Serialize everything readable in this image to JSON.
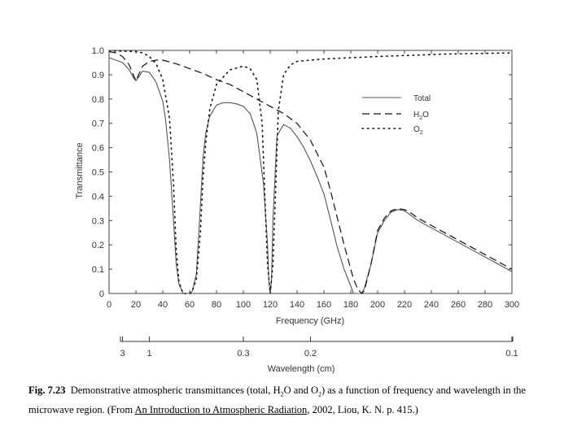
{
  "chart_data": {
    "type": "line",
    "xlabel": "Frequency (GHz)",
    "ylabel": "Transmittance",
    "xlim": [
      0,
      300
    ],
    "ylim": [
      0,
      1.0
    ],
    "x_ticks": [
      "0",
      "20",
      "40",
      "60",
      "80",
      "100",
      "120",
      "140",
      "160",
      "180",
      "200",
      "220",
      "240",
      "260",
      "280",
      "300"
    ],
    "y_ticks": [
      "0",
      "0.1",
      "0.2",
      "0.3",
      "0.4",
      "0.5",
      "0.6",
      "0.7",
      "0.8",
      "0.9",
      "1.0"
    ],
    "grid": false,
    "legend_position": "top-right",
    "legend": [
      "Total",
      "H2O",
      "O2"
    ],
    "secondary_axis": {
      "label": "Wavelength (cm)",
      "ticks": [
        {
          "label": "3",
          "frequency": 10
        },
        {
          "label": "1",
          "frequency": 30
        },
        {
          "label": "0.3",
          "frequency": 100
        },
        {
          "label": "0.2",
          "frequency": 150
        },
        {
          "label": "0.1",
          "frequency": 300
        }
      ]
    },
    "series": [
      {
        "name": "Total",
        "style": "solid",
        "x": [
          0,
          5,
          10,
          15,
          18,
          20,
          22,
          25,
          30,
          35,
          40,
          42,
          45,
          48,
          50,
          52,
          55,
          58,
          60,
          62,
          65,
          68,
          70,
          72,
          75,
          80,
          85,
          90,
          95,
          100,
          105,
          110,
          115,
          118,
          119,
          120,
          121,
          122,
          125,
          130,
          135,
          140,
          145,
          150,
          155,
          160,
          165,
          170,
          175,
          180,
          182,
          185,
          188,
          190,
          195,
          200,
          205,
          210,
          215,
          220,
          225,
          230,
          240,
          250,
          260,
          270,
          280,
          290,
          300
        ],
        "y": [
          0.97,
          0.96,
          0.95,
          0.92,
          0.89,
          0.875,
          0.89,
          0.915,
          0.91,
          0.87,
          0.79,
          0.72,
          0.55,
          0.3,
          0.12,
          0.04,
          0,
          0,
          0,
          0.01,
          0.08,
          0.36,
          0.56,
          0.66,
          0.73,
          0.775,
          0.785,
          0.785,
          0.78,
          0.77,
          0.74,
          0.66,
          0.45,
          0.2,
          0.05,
          0,
          0.05,
          0.3,
          0.65,
          0.695,
          0.68,
          0.645,
          0.6,
          0.545,
          0.48,
          0.41,
          0.3,
          0.19,
          0.1,
          0.03,
          0,
          0,
          0,
          0.02,
          0.12,
          0.25,
          0.3,
          0.335,
          0.345,
          0.34,
          0.32,
          0.3,
          0.27,
          0.24,
          0.21,
          0.18,
          0.15,
          0.12,
          0.09
        ]
      },
      {
        "name": "H2O",
        "style": "dashed",
        "x": [
          0,
          5,
          10,
          15,
          18,
          20,
          22,
          25,
          30,
          35,
          40,
          50,
          60,
          70,
          80,
          90,
          100,
          110,
          120,
          130,
          140,
          150,
          160,
          165,
          170,
          175,
          180,
          182,
          185,
          188,
          190,
          195,
          200,
          205,
          210,
          215,
          220,
          225,
          230,
          240,
          250,
          260,
          270,
          280,
          290,
          300
        ],
        "y": [
          0.995,
          0.99,
          0.975,
          0.94,
          0.9,
          0.875,
          0.9,
          0.935,
          0.955,
          0.96,
          0.96,
          0.945,
          0.925,
          0.905,
          0.88,
          0.86,
          0.83,
          0.8,
          0.77,
          0.74,
          0.7,
          0.63,
          0.52,
          0.42,
          0.31,
          0.2,
          0.1,
          0.06,
          0.02,
          0,
          0.01,
          0.12,
          0.26,
          0.31,
          0.34,
          0.35,
          0.345,
          0.33,
          0.31,
          0.28,
          0.25,
          0.22,
          0.19,
          0.16,
          0.13,
          0.1
        ]
      },
      {
        "name": "O2",
        "style": "dotted",
        "x": [
          0,
          10,
          20,
          25,
          30,
          35,
          40,
          45,
          48,
          50,
          52,
          55,
          58,
          60,
          62,
          65,
          68,
          70,
          72,
          75,
          80,
          90,
          100,
          105,
          110,
          114,
          116,
          118,
          120,
          122,
          124,
          126,
          130,
          135,
          140,
          160,
          200,
          250,
          300
        ],
        "y": [
          0.998,
          0.997,
          0.995,
          0.99,
          0.975,
          0.945,
          0.88,
          0.72,
          0.45,
          0.18,
          0.05,
          0,
          0,
          0,
          0.01,
          0.06,
          0.25,
          0.48,
          0.62,
          0.76,
          0.86,
          0.92,
          0.935,
          0.925,
          0.88,
          0.7,
          0.4,
          0.12,
          0,
          0.12,
          0.42,
          0.75,
          0.9,
          0.94,
          0.955,
          0.965,
          0.975,
          0.985,
          0.99
        ]
      }
    ]
  },
  "caption": {
    "label": "Fig. 7.23",
    "text_1": "Demonstrative atmospheric transmittances (total, H",
    "sub_1": "2",
    "text_2": "O and O",
    "sub_2": "2",
    "text_3": ") as a function of frequency and wavelength in the microwave region. (From ",
    "book_title": "An Introduction to Atmospheric Radiation,",
    "text_4": " 2002, Liou, K. N. p. 415.)"
  }
}
